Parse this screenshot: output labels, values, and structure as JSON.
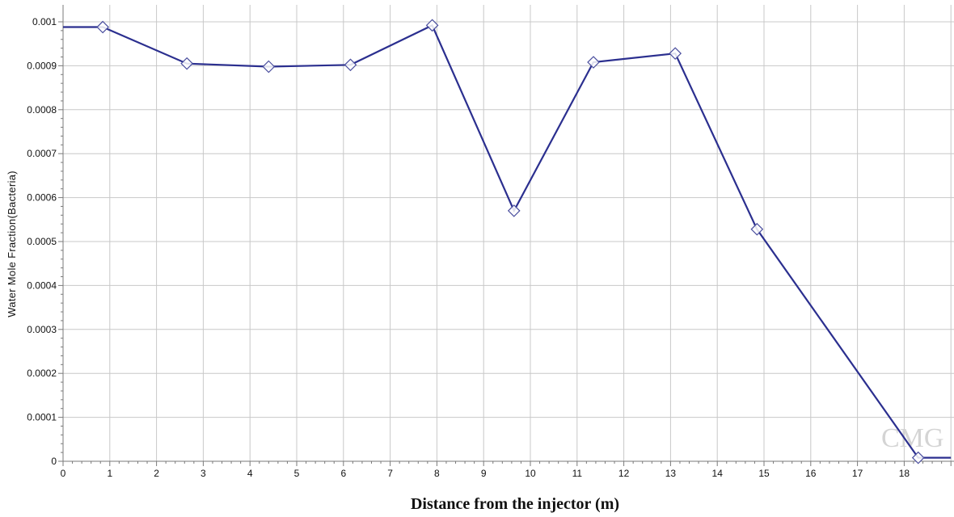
{
  "chart_data": {
    "type": "line",
    "title": "",
    "xlabel": "Distance from the injector (m)",
    "ylabel": "Water Mole Fraction(Bacteria)",
    "xlim": [
      0,
      19
    ],
    "ylim": [
      0,
      0.001
    ],
    "x_ticks": [
      "0",
      "1",
      "2",
      "3",
      "4",
      "5",
      "6",
      "7",
      "8",
      "9",
      "10",
      "11",
      "12",
      "13",
      "14",
      "15",
      "16",
      "17",
      "18"
    ],
    "y_ticks": [
      "0",
      "0.0001",
      "0.0002",
      "0.0003",
      "0.0004",
      "0.0005",
      "0.0006",
      "0.0007",
      "0.0008",
      "0.0009",
      "0.001"
    ],
    "grid": true,
    "legend": "none",
    "series": [
      {
        "color": "#2b2f8f",
        "marker": "diamond",
        "line_points": [
          {
            "x": 0,
            "y": 0.000988
          },
          {
            "x": 0.85,
            "y": 0.000988
          },
          {
            "x": 2.65,
            "y": 0.000905
          },
          {
            "x": 4.4,
            "y": 0.000898
          },
          {
            "x": 6.15,
            "y": 0.000902
          },
          {
            "x": 7.9,
            "y": 0.000992
          },
          {
            "x": 9.65,
            "y": 0.00057
          },
          {
            "x": 11.35,
            "y": 0.000908
          },
          {
            "x": 13.1,
            "y": 0.000928
          },
          {
            "x": 14.85,
            "y": 0.000528
          },
          {
            "x": 18.3,
            "y": 8e-06
          },
          {
            "x": 19,
            "y": 8e-06
          }
        ],
        "marker_points": [
          {
            "x": 0.85,
            "y": 0.000988
          },
          {
            "x": 2.65,
            "y": 0.000905
          },
          {
            "x": 4.4,
            "y": 0.000898
          },
          {
            "x": 6.15,
            "y": 0.000902
          },
          {
            "x": 7.9,
            "y": 0.000992
          },
          {
            "x": 9.65,
            "y": 0.00057
          },
          {
            "x": 11.35,
            "y": 0.000908
          },
          {
            "x": 13.1,
            "y": 0.000928
          },
          {
            "x": 14.85,
            "y": 0.000528
          },
          {
            "x": 18.3,
            "y": 8e-06
          }
        ]
      }
    ]
  },
  "watermark": "CMG"
}
